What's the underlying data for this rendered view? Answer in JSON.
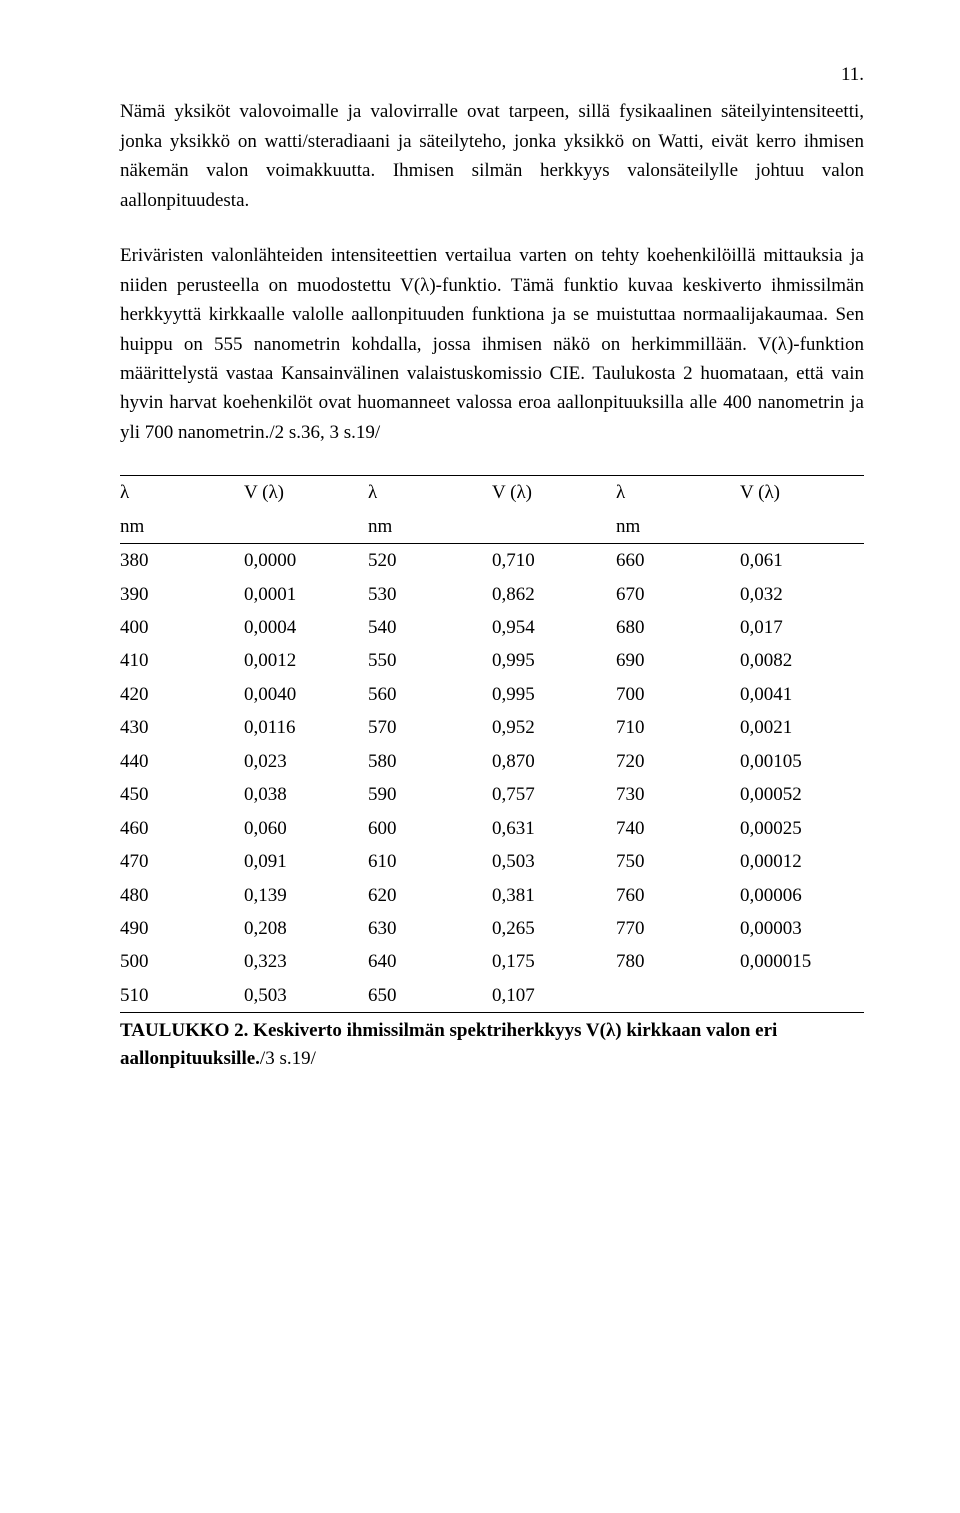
{
  "pageNumber": "11.",
  "para1": "Nämä yksiköt valovoimalle ja valovirralle ovat tarpeen, sillä fysikaalinen säteilyintensiteetti, jonka yksikkö on watti/steradiaani ja säteilyteho, jonka yksikkö on Watti, eivät kerro ihmisen näkemän valon voimakkuutta. Ihmisen silmän herkkyys valonsäteilylle johtuu valon aallonpituudesta.",
  "para2": "Eriväristen valonlähteiden intensiteettien vertailua varten on tehty koehenkilöillä mittauksia ja niiden perusteella on muodostettu V(λ)-funktio. Tämä funktio kuvaa keskiverto ihmissilmän herkkyyttä kirkkaalle valolle aallonpituuden funktiona ja se muistuttaa normaalijakaumaa. Sen huippu on 555 nanometrin kohdalla, jossa ihmisen näkö on herkimmillään. V(λ)-funktion määrittelystä vastaa Kansainvälinen valaistuskomissio CIE. Taulukosta 2 huomataan, että vain hyvin harvat koehenkilöt ovat huomanneet valossa eroa aallonpituuksilla alle 400 nanometrin ja yli 700 nanometrin./2 s.36, 3 s.19/",
  "headers": [
    "λ",
    "V (λ)",
    "λ",
    "V (λ)",
    "λ",
    "V (λ)"
  ],
  "units": [
    "nm",
    "",
    "nm",
    "",
    "nm",
    ""
  ],
  "rows": [
    [
      "380",
      "0,0000",
      "520",
      "0,710",
      "660",
      "0,061"
    ],
    [
      "390",
      "0,0001",
      "530",
      "0,862",
      "670",
      "0,032"
    ],
    [
      "400",
      "0,0004",
      "540",
      "0,954",
      "680",
      "0,017"
    ],
    [
      "410",
      "0,0012",
      "550",
      "0,995",
      "690",
      "0,0082"
    ],
    [
      "420",
      "0,0040",
      "560",
      "0,995",
      "700",
      "0,0041"
    ],
    [
      "430",
      "0,0116",
      "570",
      "0,952",
      "710",
      "0,0021"
    ],
    [
      "440",
      "0,023",
      "580",
      "0,870",
      "720",
      "0,00105"
    ],
    [
      "450",
      "0,038",
      "590",
      "0,757",
      "730",
      "0,00052"
    ],
    [
      "460",
      "0,060",
      "600",
      "0,631",
      "740",
      "0,00025"
    ],
    [
      "470",
      "0,091",
      "610",
      "0,503",
      "750",
      "0,00012"
    ],
    [
      "480",
      "0,139",
      "620",
      "0,381",
      "760",
      "0,00006"
    ],
    [
      "490",
      "0,208",
      "630",
      "0,265",
      "770",
      "0,00003"
    ],
    [
      "500",
      "0,323",
      "640",
      "0,175",
      "780",
      "0,000015"
    ],
    [
      "510",
      "0,503",
      "650",
      "0,107",
      "",
      ""
    ]
  ],
  "captionBold": "TAULUKKO 2. Keskiverto ihmissilmän spektriherkkyys V(λ) kirkkaan valon eri aallonpituuksille.",
  "captionTail": "/3 s.19/"
}
